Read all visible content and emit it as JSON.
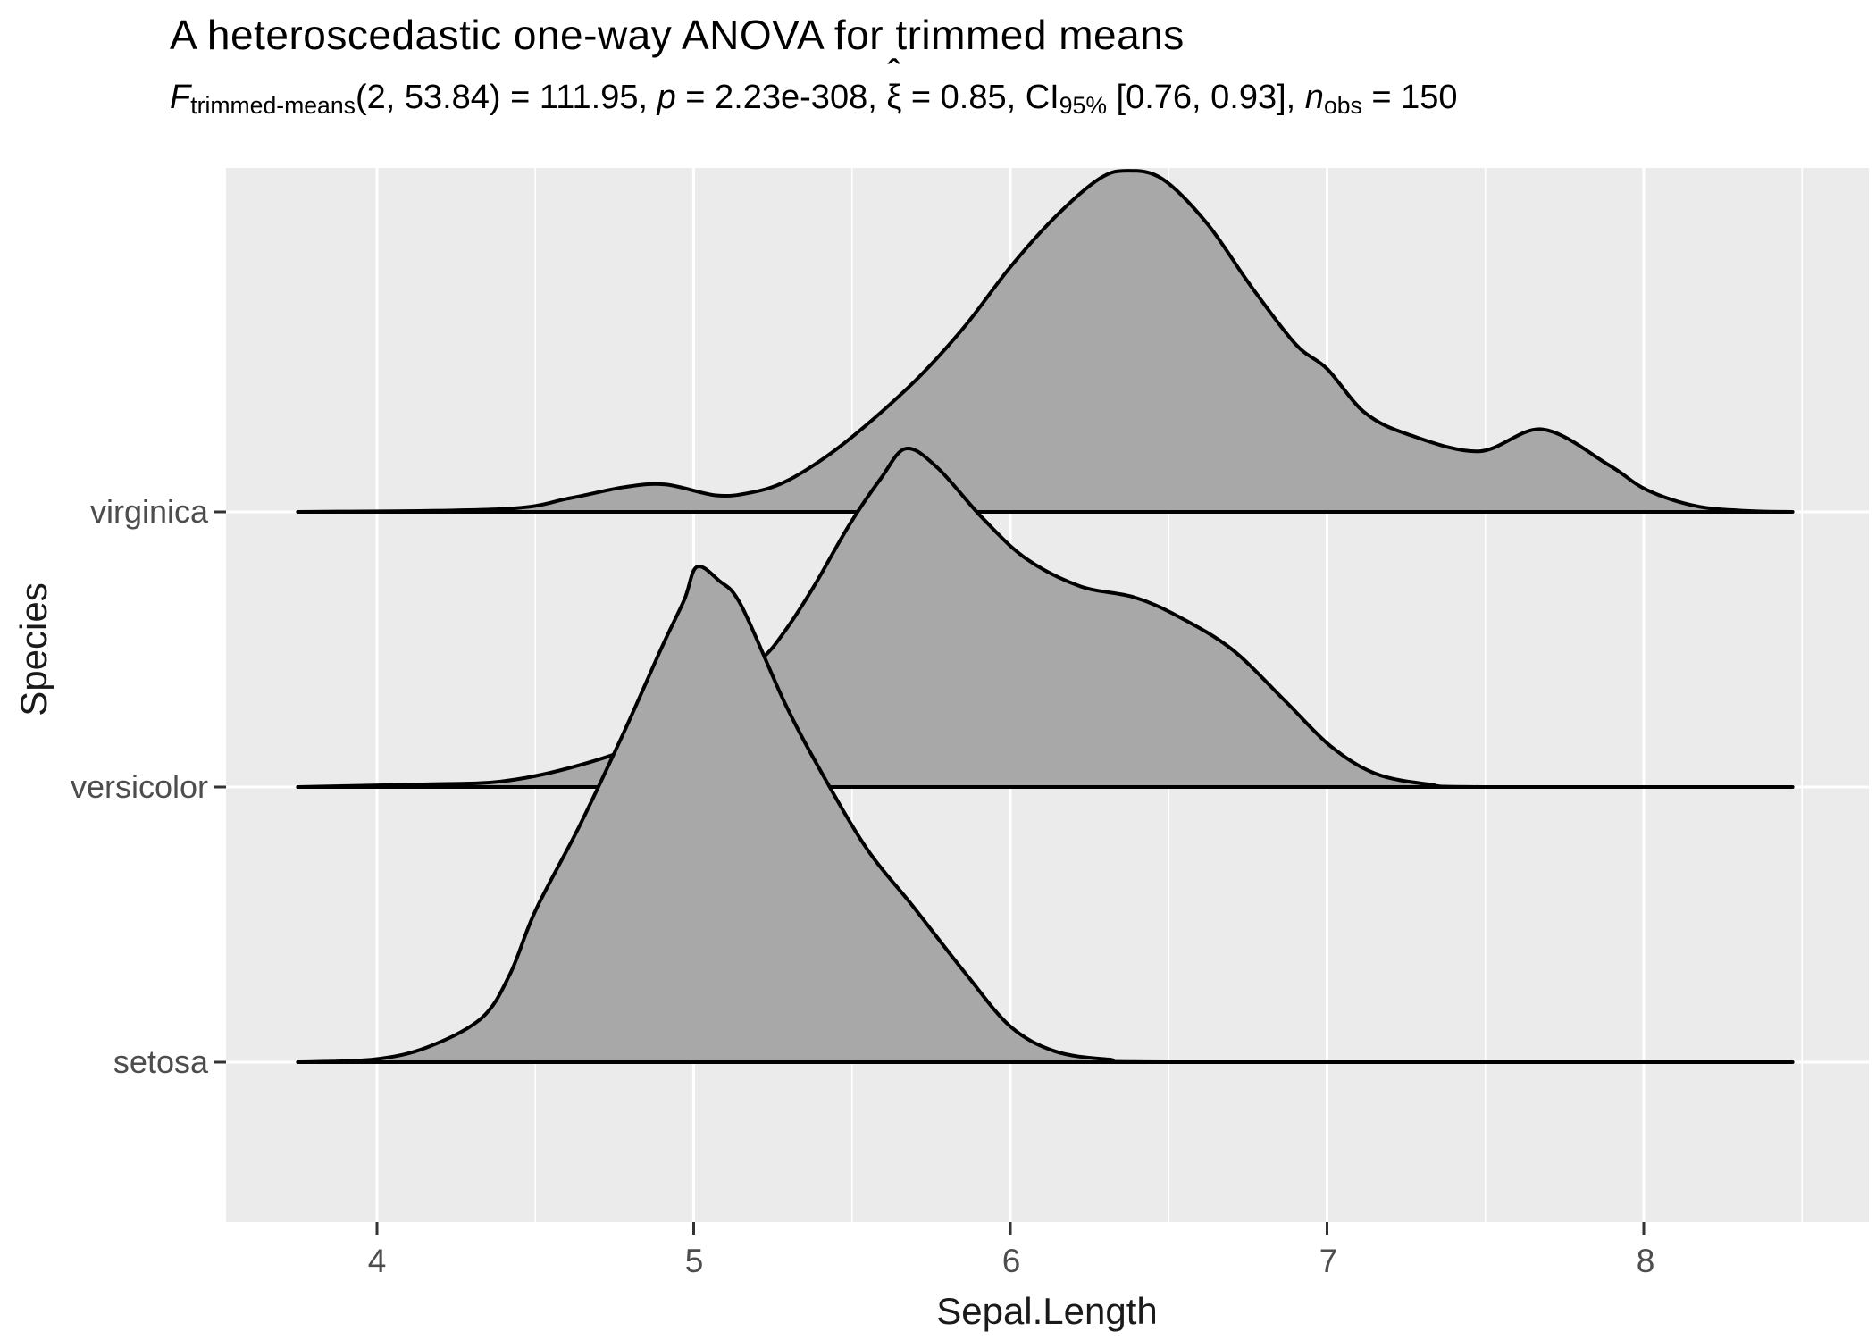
{
  "title": "A heteroscedastic one-way ANOVA for trimmed means",
  "subtitle": {
    "f_symbol": "F",
    "f_subscript": "trimmed-means",
    "df_part": "(2, 53.84) = 111.95, ",
    "p_symbol": "p",
    "p_part": " = 2.23e-308, ",
    "xi_symbol": "ξ",
    "xi_hat": "ˆ",
    "xi_part": " = 0.85, CI",
    "ci_subscript": "95%",
    "ci_part": " [0.76, 0.93], ",
    "n_symbol": "n",
    "n_subscript": "obs",
    "n_part": " = 150"
  },
  "axes": {
    "x_title": "Sepal.Length",
    "y_title": "Species",
    "x_ticks": [
      4,
      5,
      6,
      7,
      8
    ],
    "y_ticks": [
      "virginica",
      "versicolor",
      "setosa"
    ]
  },
  "colors": {
    "panel_background": "#ebebeb",
    "gridline": "#ffffff",
    "ridge_fill": "#a8a8a8",
    "ridge_line": "#000000",
    "tick_mark": "#333333",
    "tick_label": "#4d4d4d",
    "axis_title": "#1a1a1a",
    "title_color": "#000000"
  },
  "chart_data": {
    "type": "area",
    "subtype": "ridgeline-density",
    "title": "A heteroscedastic one-way ANOVA for trimmed means",
    "subtitle_plain": "F_trimmed-means(2, 53.84) = 111.95, p = 2.23e-308, ξ̂ = 0.85, CI_95% [0.76, 0.93], n_obs = 150",
    "xlabel": "Sepal.Length",
    "ylabel": "Species",
    "x_domain": [
      3.75,
      8.47
    ],
    "x_major_gridlines": [
      4,
      5,
      6,
      7,
      8
    ],
    "x_minor_gridlines": [
      4.5,
      5.5,
      6.5,
      7.5,
      8.5
    ],
    "grid": true,
    "legend_position": "none",
    "height_units_note": "density height expressed in row-spacing units; max ridge height = 1.8 rows",
    "series": [
      {
        "name": "virginica",
        "row": 3,
        "peak_x": 6.37,
        "peak_height": 1.24,
        "points": [
          [
            3.75,
            0
          ],
          [
            4.39,
            0.01
          ],
          [
            4.61,
            0.05
          ],
          [
            4.78,
            0.09
          ],
          [
            4.91,
            0.1
          ],
          [
            5.07,
            0.06
          ],
          [
            5.18,
            0.07
          ],
          [
            5.29,
            0.11
          ],
          [
            5.43,
            0.21
          ],
          [
            5.57,
            0.34
          ],
          [
            5.72,
            0.5
          ],
          [
            5.86,
            0.68
          ],
          [
            6.0,
            0.89
          ],
          [
            6.14,
            1.07
          ],
          [
            6.28,
            1.21
          ],
          [
            6.37,
            1.24
          ],
          [
            6.48,
            1.21
          ],
          [
            6.62,
            1.05
          ],
          [
            6.76,
            0.82
          ],
          [
            6.9,
            0.61
          ],
          [
            7.0,
            0.52
          ],
          [
            7.12,
            0.36
          ],
          [
            7.26,
            0.28
          ],
          [
            7.48,
            0.22
          ],
          [
            7.68,
            0.3
          ],
          [
            7.89,
            0.17
          ],
          [
            8.01,
            0.08
          ],
          [
            8.17,
            0.02
          ],
          [
            8.34,
            0.003
          ],
          [
            8.47,
            0
          ]
        ]
      },
      {
        "name": "versicolor",
        "row": 2,
        "peak_x": 5.67,
        "peak_height": 1.23,
        "points": [
          [
            3.75,
            0
          ],
          [
            4.16,
            0.01
          ],
          [
            4.39,
            0.02
          ],
          [
            4.61,
            0.07
          ],
          [
            4.84,
            0.16
          ],
          [
            5.04,
            0.3
          ],
          [
            5.21,
            0.46
          ],
          [
            5.29,
            0.57
          ],
          [
            5.38,
            0.73
          ],
          [
            5.49,
            0.95
          ],
          [
            5.59,
            1.12
          ],
          [
            5.67,
            1.23
          ],
          [
            5.77,
            1.16
          ],
          [
            5.91,
            0.98
          ],
          [
            6.05,
            0.83
          ],
          [
            6.22,
            0.73
          ],
          [
            6.39,
            0.69
          ],
          [
            6.53,
            0.62
          ],
          [
            6.7,
            0.5
          ],
          [
            6.87,
            0.31
          ],
          [
            7.01,
            0.15
          ],
          [
            7.15,
            0.05
          ],
          [
            7.32,
            0.01
          ],
          [
            7.49,
            0
          ],
          [
            8.47,
            0
          ]
        ]
      },
      {
        "name": "setosa",
        "row": 1,
        "peak_x": 5.01,
        "peak_height": 1.8,
        "points": [
          [
            3.75,
            0
          ],
          [
            3.99,
            0.01
          ],
          [
            4.16,
            0.055
          ],
          [
            4.33,
            0.16
          ],
          [
            4.42,
            0.32
          ],
          [
            4.5,
            0.55
          ],
          [
            4.64,
            0.86
          ],
          [
            4.78,
            1.2
          ],
          [
            4.9,
            1.51
          ],
          [
            4.97,
            1.68
          ],
          [
            5.01,
            1.8
          ],
          [
            5.08,
            1.75
          ],
          [
            5.15,
            1.66
          ],
          [
            5.29,
            1.3
          ],
          [
            5.41,
            1.04
          ],
          [
            5.55,
            0.77
          ],
          [
            5.69,
            0.57
          ],
          [
            5.86,
            0.32
          ],
          [
            6.0,
            0.13
          ],
          [
            6.14,
            0.04
          ],
          [
            6.31,
            0.01
          ],
          [
            6.53,
            0
          ],
          [
            8.47,
            0
          ]
        ]
      }
    ]
  }
}
